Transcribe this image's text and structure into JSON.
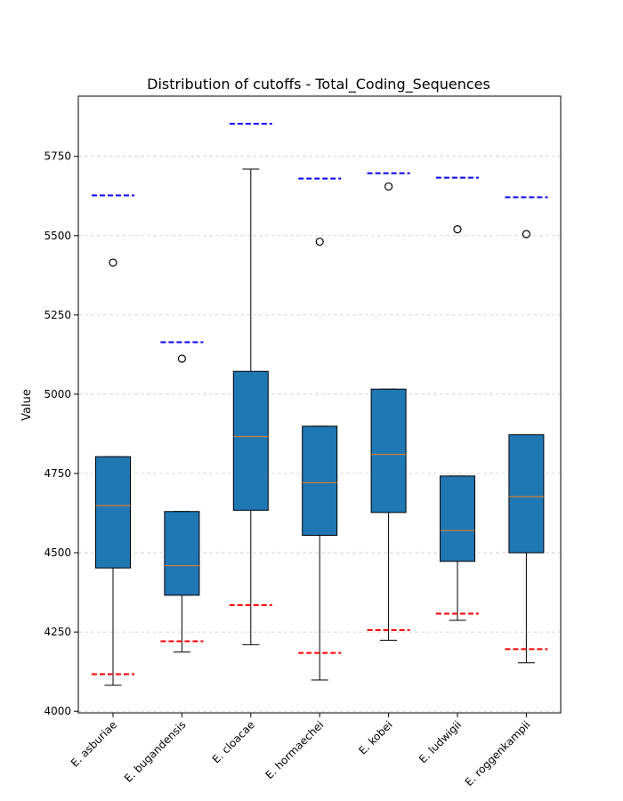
{
  "chart_data": {
    "type": "box",
    "title": "Distribution of cutoffs - Total_Coding_Sequences",
    "xlabel": "",
    "ylabel": "Value",
    "ylim": [
      3995,
      5940
    ],
    "yticks": [
      4000,
      4250,
      4500,
      4750,
      5000,
      5250,
      5500,
      5750
    ],
    "grid": "y",
    "colors": {
      "box_fill": "#1f77b4",
      "median": "#ff7f0e",
      "upper_cutoff": "#0000ff",
      "lower_cutoff": "#ff0000",
      "grid": "#cccccc"
    },
    "categories": [
      "E. asburiae",
      "E. bugandensis",
      "E. cloacae",
      "E. hormaechei",
      "E. kobei",
      "E. ludwigii",
      "E. roggenkampii"
    ],
    "boxes": [
      {
        "whisker_low": 4082,
        "q1": 4452,
        "median": 4649,
        "q3": 4803,
        "whisker_high": 4803,
        "outliers": [
          5415
        ]
      },
      {
        "whisker_low": 4187,
        "q1": 4366,
        "median": 4459,
        "q3": 4630,
        "whisker_high": 4630,
        "outliers": [
          5112
        ]
      },
      {
        "whisker_low": 4210,
        "q1": 4634,
        "median": 4866,
        "q3": 5072,
        "whisker_high": 5710,
        "outliers": []
      },
      {
        "whisker_low": 4099,
        "q1": 4555,
        "median": 4721,
        "q3": 4899,
        "whisker_high": 4899,
        "outliers": [
          5481
        ]
      },
      {
        "whisker_low": 4224,
        "q1": 4627,
        "median": 4810,
        "q3": 5016,
        "whisker_high": 5016,
        "outliers": [
          5655
        ]
      },
      {
        "whisker_low": 4287,
        "q1": 4473,
        "median": 4570,
        "q3": 4742,
        "whisker_high": 4742,
        "outliers": [
          5520
        ]
      },
      {
        "whisker_low": 4153,
        "q1": 4500,
        "median": 4677,
        "q3": 4872,
        "whisker_high": 4872,
        "outliers": [
          5505
        ]
      }
    ],
    "upper_cutoffs": [
      5627,
      5164,
      5853,
      5680,
      5697,
      5683,
      5621
    ],
    "lower_cutoffs": [
      4117,
      4221,
      4335,
      4184,
      4256,
      4308,
      4196
    ]
  }
}
